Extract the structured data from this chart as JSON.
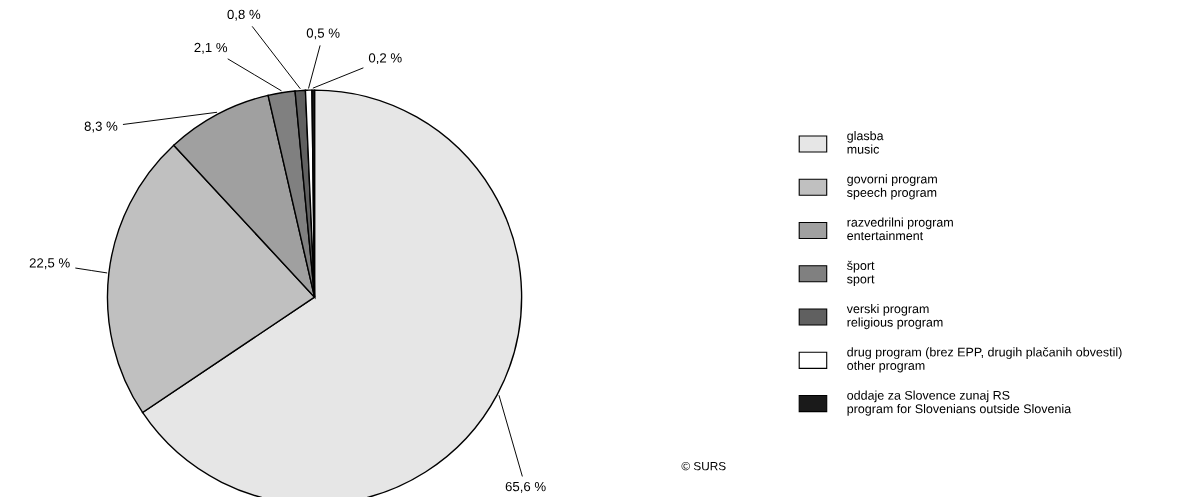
{
  "chart_data": {
    "type": "pie",
    "categories": [
      "glasba\nmusic",
      "govorni program\nspeech program",
      "razvedrilni program\nentertainment",
      "šport\nsport",
      "verski program\nreligious program",
      "drug program (brez EPP, drugih plačanih obvestil)\nother program",
      "oddaje za Slovence zunaj RS\nprogram for Slovenians outside Slovenia"
    ],
    "values": [
      65.6,
      22.5,
      8.3,
      2.1,
      0.8,
      0.5,
      0.2
    ],
    "value_labels": [
      "65,6 %",
      "22,5 %",
      "8,3 %",
      "2,1 %",
      "0,8 %",
      "0,5 %",
      "0,2 %"
    ],
    "colors": [
      "#e6e6e6",
      "#c0c0c0",
      "#a0a0a0",
      "#808080",
      "#606060",
      "#ffffff",
      "#1a1a1a"
    ],
    "legend": "right",
    "annotations": [
      "© SURS"
    ]
  }
}
